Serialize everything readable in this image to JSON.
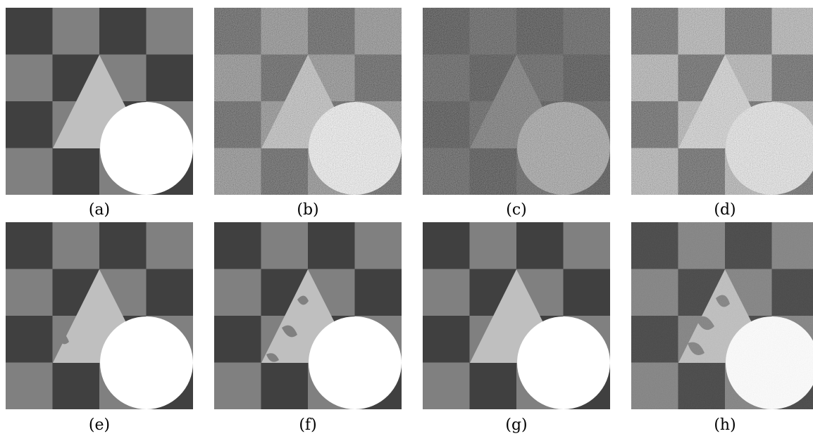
{
  "figure": {
    "panels": [
      {
        "label": "(a)",
        "variant": "clean"
      },
      {
        "label": "(b)",
        "variant": "noisy-medium"
      },
      {
        "label": "(c)",
        "variant": "noisy-dark"
      },
      {
        "label": "(d)",
        "variant": "noisy-bright"
      },
      {
        "label": "(e)",
        "variant": "segmented"
      },
      {
        "label": "(f)",
        "variant": "segmented-errors"
      },
      {
        "label": "(g)",
        "variant": "segmented-clean"
      },
      {
        "label": "(h)",
        "variant": "segmented-errors-dark"
      }
    ],
    "colors": {
      "dark": "#404040",
      "mid": "#808080",
      "light": "#bfbfbf",
      "white": "#ffffff"
    }
  }
}
